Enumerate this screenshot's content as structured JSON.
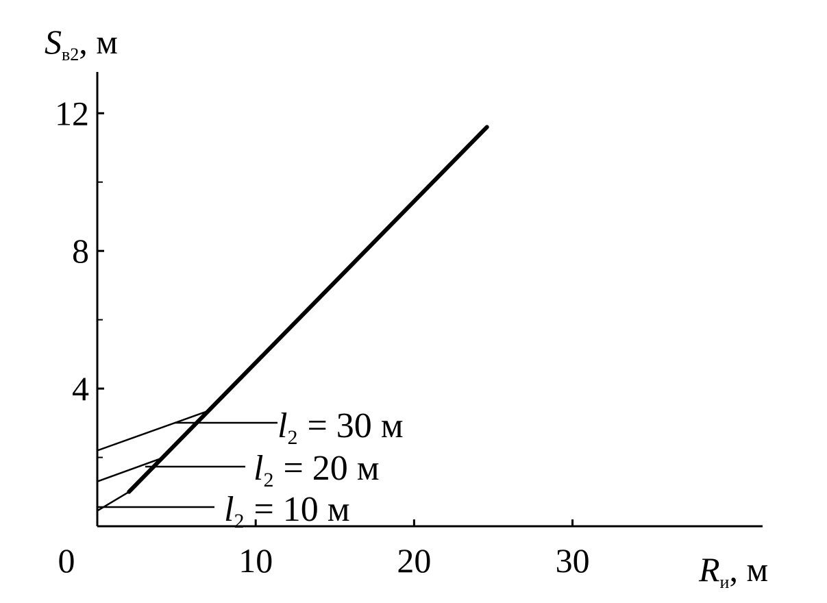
{
  "chart_data": {
    "type": "line",
    "x_label": {
      "symbol": "R",
      "subscript": "и",
      "unit": ", м"
    },
    "y_label": {
      "symbol": "S",
      "subscript": "в2",
      "unit": ", м"
    },
    "xlim": [
      0,
      42
    ],
    "ylim": [
      0,
      13.2
    ],
    "xticks": [
      0,
      10,
      20,
      30
    ],
    "yticks": [
      4,
      8,
      12
    ],
    "y_minor_ticks": [
      2,
      6,
      10
    ],
    "series": [
      {
        "color": "#000000",
        "width": 6,
        "x": [
          2,
          24.6
        ],
        "values": [
          1,
          11.6
        ]
      },
      {
        "color": "#000000",
        "width": 2.5,
        "x": [
          0,
          7
        ],
        "values": [
          2.2,
          3.35
        ]
      },
      {
        "color": "#000000",
        "width": 2.5,
        "x": [
          0,
          4.2
        ],
        "values": [
          1.3,
          2.0
        ]
      },
      {
        "color": "#000000",
        "width": 2.5,
        "x": [
          0,
          2
        ],
        "values": [
          0.45,
          1.0
        ]
      }
    ],
    "annotations": [
      {
        "symbol": "l",
        "subscript": "2",
        "text": "= 30 м"
      },
      {
        "symbol": "l",
        "subscript": "2",
        "text": "= 20 м"
      },
      {
        "symbol": "l",
        "subscript": "2",
        "text": "= 10 м"
      }
    ]
  }
}
